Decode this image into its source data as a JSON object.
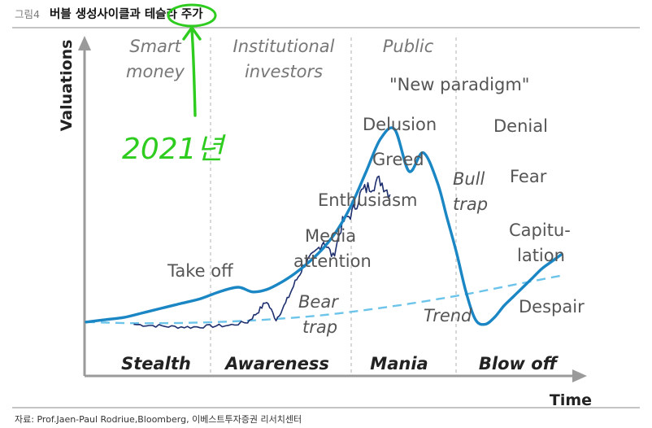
{
  "header": {
    "figure_no": "그림4",
    "title_prefix": "버블 생성사이클과 ",
    "title_highlight": "테슬라",
    "title_suffix": " 주가"
  },
  "annotation": {
    "handwritten": "2021년",
    "color": "#2ecc1f"
  },
  "source": "자료: Prof.Jaen-Paul Rodriue,Bloomberg, 이베스트투자증권 리서치센터",
  "colors": {
    "main_curve": "#1a86c4",
    "trend": "#6cc4ea",
    "price": "#1e2f6e",
    "axis": "#9a9a9a",
    "text": "#555555"
  },
  "chart_data": {
    "type": "line",
    "xlabel": "Time",
    "ylabel": "Valuations",
    "phases": [
      "Stealth",
      "Awareness",
      "Mania",
      "Blow off"
    ],
    "participants": [
      {
        "label_line1": "Smart",
        "label_line2": "money"
      },
      {
        "label_line1": "Institutional",
        "label_line2": "investors"
      },
      {
        "label_line1": "Public",
        "label_line2": ""
      }
    ],
    "annotations": {
      "take_off": "Take off",
      "media": "Media",
      "attention": "attention",
      "bear": "Bear",
      "trap1": "trap",
      "enthusiasm": "Enthusiasm",
      "greed": "Greed",
      "delusion": "Delusion",
      "new_paradigm": "\"New paradigm\"",
      "bull": "Bull",
      "trap2": "trap",
      "denial": "Denial",
      "fear": "Fear",
      "capitu": "Capitu-",
      "lation": "lation",
      "despair": "Despair",
      "trend": "Trend"
    },
    "series": [
      {
        "name": "",
        "style": "solid",
        "x": [
          0,
          4,
          8,
          12,
          16,
          20,
          24,
          28,
          32,
          35,
          38,
          41,
          44,
          47,
          50,
          53,
          56,
          59,
          62,
          65,
          68,
          71,
          74,
          76,
          78,
          80,
          82,
          84,
          86,
          88,
          90,
          92,
          94,
          96,
          98,
          100
        ],
        "y": [
          5,
          6,
          7,
          9,
          11,
          13,
          15,
          18,
          20,
          18,
          19,
          22,
          26,
          31,
          37,
          45,
          56,
          70,
          84,
          88,
          70,
          78,
          65,
          50,
          35,
          18,
          6,
          4,
          7,
          12,
          16,
          20,
          24,
          28,
          31,
          34
        ]
      },
      {
        "name": "",
        "style": "dashed",
        "x": [
          0,
          10,
          20,
          30,
          40,
          50,
          60,
          70,
          80,
          90,
          100
        ],
        "y": [
          5,
          4.5,
          4.6,
          5.2,
          6.3,
          8,
          10.5,
          13.5,
          17,
          21,
          25
        ]
      },
      {
        "name": "",
        "style": "price",
        "x": [
          10,
          14,
          18,
          22,
          26,
          30,
          34,
          36,
          38,
          40,
          42,
          44,
          46,
          48,
          50,
          52,
          54,
          56,
          58,
          60,
          62,
          64
        ],
        "y": [
          4,
          3.5,
          3,
          2.8,
          3.2,
          3.5,
          5,
          9,
          14,
          6,
          13,
          22,
          30,
          34,
          40,
          33,
          48,
          52,
          61,
          64,
          66,
          60
        ]
      }
    ],
    "xlim": [
      0,
      100
    ],
    "ylim": [
      0,
      100
    ],
    "grid": false,
    "legend": "none"
  }
}
